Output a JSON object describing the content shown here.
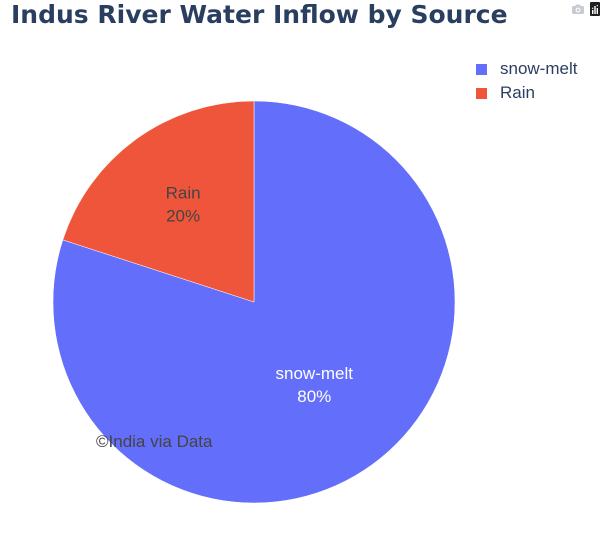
{
  "title": "Indus River Water Inflow by Source",
  "watermark": "©India via Data",
  "modebar": {
    "camera_icon": "camera-icon",
    "plotly_icon": "plotly-logo-icon"
  },
  "chart_data": {
    "type": "pie",
    "title": "Indus River Water Inflow by Source",
    "labels": [
      "snow-melt",
      "Rain"
    ],
    "values": [
      80,
      20
    ],
    "percent_labels": [
      "80%",
      "20%"
    ],
    "colors": [
      "#636efa",
      "#ef553b"
    ],
    "legend_position": "top-right",
    "text_colors": [
      "#ffffff",
      "#444444"
    ]
  }
}
